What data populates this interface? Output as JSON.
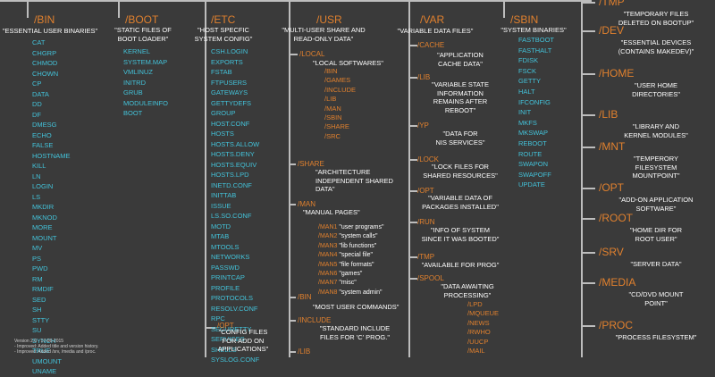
{
  "columns": {
    "bin": {
      "name": "/BIN",
      "desc": "\"ESSENTIAL USER BINARIES\"",
      "items": [
        "CAT",
        "CHGRP",
        "CHMOD",
        "CHOWN",
        "CP",
        "DATA",
        "DD",
        "DF",
        "DMESG",
        "ECHO",
        "FALSE",
        "HOSTNAME",
        "KILL",
        "LN",
        "LOGIN",
        "LS",
        "MKDIR",
        "MKNOD",
        "MORE",
        "MOUNT",
        "MV",
        "PS",
        "PWD",
        "RM",
        "RMDIF",
        "SED",
        "SH",
        "STTY",
        "SU",
        "SYNCH",
        "TRUE",
        "UMOUNT",
        "UNAME"
      ]
    },
    "boot": {
      "name": "/BOOT",
      "desc": [
        "\"STATIC FILES OF",
        "BOOT LOADER\""
      ],
      "items": [
        "KERNEL",
        "SYSTEM.MAP",
        "VMLINUZ",
        "INITRD",
        "GRUB",
        "MODULEINFO",
        "BOOT"
      ]
    },
    "etc": {
      "name": "/ETC",
      "desc": [
        "\"HOST SPECFIC",
        "SYSTEM CONFIG\""
      ],
      "items": [
        "CSH.LOGIN",
        "EXPORTS",
        "FSTAB",
        "FTPUSERS",
        "GATEWAYS",
        "GETTYDEFS",
        "GROUP",
        "HOST.CONF",
        "HOSTS",
        "HOSTS.ALLOW",
        "HOSTS.DENY",
        "HOSTS.EQUIV",
        "HOSTS.LPD",
        "INETD.CONF",
        "INITTAB",
        "ISSUE",
        "LS.SO.CONF",
        "MOTD",
        "MTAB",
        "MTOOLS",
        "NETWORKS",
        "PASSWD",
        "PRINTCAP",
        "PROFILE",
        "PROTOCOLS",
        "RESOLV.CONF",
        "RPC",
        "SECURETTY",
        "SERVICES",
        "SHELLS",
        "SYSLOG.CONF"
      ],
      "opt": {
        "name": "/OPT",
        "desc": [
          "\"CONFIG FILES",
          "FOR ADD ON",
          "APPLICATIONS\""
        ]
      }
    },
    "usr": {
      "name": "/USR",
      "desc": [
        "\"MULTI-USER SHARE AND",
        "READ-ONLY DATA\""
      ],
      "local": {
        "name": "/LOCAL",
        "desc": "\"LOCAL SOFTWARES\"",
        "items": [
          "/BIN",
          "/GAMES",
          "/INCLUDE",
          "/LIB",
          "/MAN",
          "/SBIN",
          "/SHARE",
          "/SRC"
        ]
      },
      "share": {
        "name": "/SHARE",
        "desc": [
          "\"ARCHITECTURE",
          "INDEPENDENT SHARED",
          "DATA\""
        ]
      },
      "man": {
        "name": "/MAN",
        "desc": "\"MANUAL PAGES\"",
        "items": [
          {
            "dir": "/MAN1",
            "desc": "\"user programs\""
          },
          {
            "dir": "/MAN2",
            "desc": "\"system calls\""
          },
          {
            "dir": "/MAN3",
            "desc": "\"lib functions\""
          },
          {
            "dir": "/MAN4",
            "desc": "\"special file\""
          },
          {
            "dir": "/MAN5",
            "desc": "\"file formats\""
          },
          {
            "dir": "/MAN6",
            "desc": "\"games\""
          },
          {
            "dir": "/MAN7",
            "desc": "\"misc\""
          },
          {
            "dir": "/MAN8",
            "desc": "\"system admin\""
          }
        ]
      },
      "bin": {
        "name": "/BIN",
        "desc": "\"MOST USER COMMANDS\""
      },
      "include": {
        "name": "/INCLUDE",
        "desc": [
          "\"STANDARD INCLUDE",
          "FILES FOR 'C' PROG.\""
        ]
      },
      "lib": {
        "name": "/LIB"
      }
    },
    "var": {
      "name": "/VAR",
      "desc": "\"VARIABLE DATA FILES\"",
      "cache": {
        "name": "/CACHE",
        "desc": [
          "\"APPLICATION",
          "CACHE DATA\""
        ]
      },
      "lib": {
        "name": "/LIB",
        "desc": [
          "\"VARIABLE STATE",
          "INFORMATION",
          "REMAINS AFTER",
          "REBOOT\""
        ]
      },
      "yp": {
        "name": "/YP",
        "desc": [
          "\"DATA FOR",
          "NIS SERVICES\""
        ]
      },
      "lock": {
        "name": "/LOCK",
        "desc": [
          "\"LOCK FILES FOR",
          "SHARED RESOURCES\""
        ]
      },
      "opt": {
        "name": "/OPT",
        "desc": [
          "\"VARIABLE DATA OF",
          "PACKAGES INSTALLED\""
        ]
      },
      "run": {
        "name": "/RUN",
        "desc": [
          "\"INFO OF SYSTEM",
          "SINCE IT WAS BOOTED\""
        ]
      },
      "tmp": {
        "name": "/TMP",
        "desc": "\"AVAILABLE FOR PROG\""
      },
      "spool": {
        "name": "/SPOOL",
        "desc": [
          "\"DATA AWAITING",
          "PROCESSING\""
        ],
        "items": [
          "/LPD",
          "/MQUEUE",
          "/NEWS",
          "/RWHO",
          "/UUCP",
          "/MAIL"
        ]
      }
    },
    "sbin": {
      "name": "/SBIN",
      "desc": "\"SYSTEM BINARIES\"",
      "items": [
        "FASTBOOT",
        "FASTHALT",
        "FDISK",
        "FSCK",
        "GETTY",
        "HALT",
        "IFCONFIG",
        "INIT",
        "MKFS",
        "MKSWAP",
        "REBOOT",
        "ROUTE",
        "SWAPON",
        "SWAPOFF",
        "UPDATE"
      ]
    },
    "right": [
      {
        "name": "/TMP",
        "desc": [
          "\"TEMPORARY FILES",
          "DELETED ON BOOTUP\""
        ]
      },
      {
        "name": "/DEV",
        "desc": [
          "\"ESSENTIAL DEVICES",
          "(CONTAINS MAKEDEV)\""
        ]
      },
      {
        "name": "/HOME",
        "desc": [
          "\"USER HOME",
          "DIRECTORIES\""
        ]
      },
      {
        "name": "/LIB",
        "desc": [
          "\"LIBRARY AND",
          "KERNEL MODULES\""
        ]
      },
      {
        "name": "/MNT",
        "desc": [
          "\"TEMPERORY",
          "FILESYSTEM",
          "MOUNTPOINT\""
        ]
      },
      {
        "name": "/OPT",
        "desc": [
          "\"ADD-ON APPLICATION",
          "SOFTWARE\""
        ]
      },
      {
        "name": "/ROOT",
        "desc": [
          "\"HOME DIR FOR",
          "ROOT USER\""
        ]
      },
      {
        "name": "/SRV",
        "desc": [
          "\"SERVER DATA\""
        ]
      },
      {
        "name": "/MEDIA",
        "desc": [
          "\"CD/DVD MOUNT",
          "POINT\""
        ]
      },
      {
        "name": "/PROC",
        "desc": [
          "\"PROCESS FILESYSTEM\""
        ]
      }
    ]
  },
  "version": {
    "title": "Version 2.0 - 17-06-2015",
    "notes": [
      "- Improved: Added title and version history.",
      "- Improved: Added /srv, /media and /proc."
    ]
  },
  "colors": {
    "background": "#3a3a3a",
    "dir": "#e0802e",
    "file": "#43c2d9",
    "text": "#ffffff",
    "line": "#bdbdbd"
  }
}
